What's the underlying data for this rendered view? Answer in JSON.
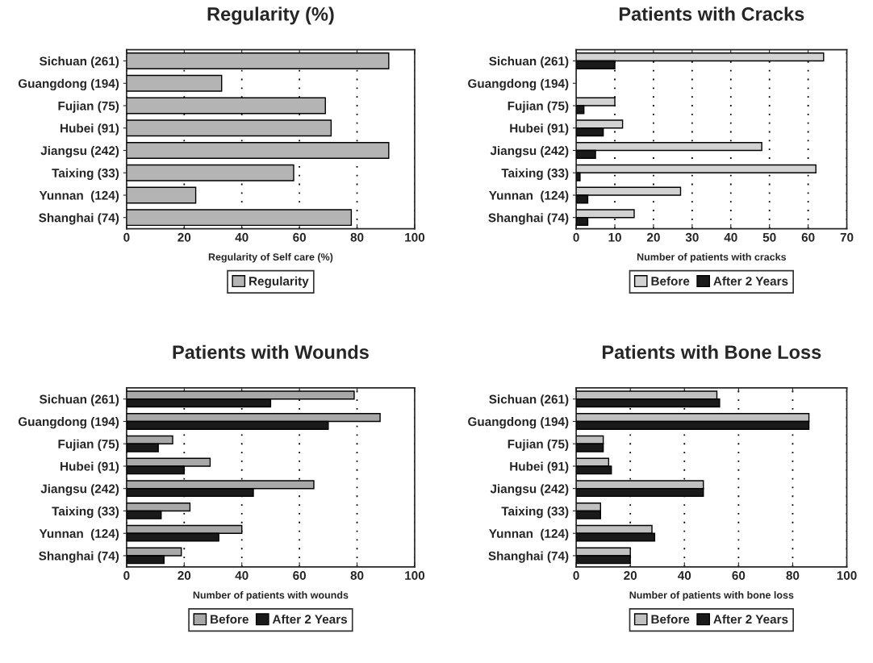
{
  "chart_data": [
    {
      "type": "bar",
      "orientation": "horizontal",
      "title": "Regularity (%)",
      "xlabel": "Regularity of Self care (%)",
      "categories": [
        "Sichuan (261)",
        "Guangdong (194)",
        "Fujian (75)",
        "Hubei (91)",
        "Jiangsu (242)",
        "Taixing (33)",
        "Yunnan  (124)",
        "Shanghai (74)"
      ],
      "series": [
        {
          "name": "Regularity",
          "color": "#b4b4b4",
          "values": [
            91,
            33,
            69,
            71,
            91,
            58,
            24,
            78
          ]
        }
      ],
      "xlim": [
        0,
        100
      ],
      "xticks": [
        0,
        20,
        40,
        60,
        80,
        100
      ],
      "grid": "x",
      "legend": "bottom"
    },
    {
      "type": "bar",
      "orientation": "horizontal",
      "title": "Patients with Cracks",
      "xlabel": "Number of patients with cracks",
      "categories": [
        "Sichuan (261)",
        "Guangdong (194)",
        "Fujian (75)",
        "Hubei (91)",
        "Jiangsu (242)",
        "Taixing (33)",
        "Yunnan  (124)",
        "Shanghai (74)"
      ],
      "series": [
        {
          "name": "Before",
          "color": "#d2d2d2",
          "values": [
            64,
            0,
            10,
            12,
            48,
            62,
            27,
            15
          ]
        },
        {
          "name": "After 2 Years",
          "color": "#1a1a1a",
          "values": [
            10,
            0,
            2,
            7,
            5,
            1,
            3,
            3
          ]
        }
      ],
      "xlim": [
        0,
        70
      ],
      "xticks": [
        0,
        10,
        20,
        30,
        40,
        50,
        60,
        70
      ],
      "grid": "x",
      "legend": "bottom"
    },
    {
      "type": "bar",
      "orientation": "horizontal",
      "title": "Patients with Wounds",
      "xlabel": "Number of patients with wounds",
      "categories": [
        "Sichuan (261)",
        "Guangdong (194)",
        "Fujian (75)",
        "Hubei (91)",
        "Jiangsu (242)",
        "Taixing (33)",
        "Yunnan  (124)",
        "Shanghai (74)"
      ],
      "series": [
        {
          "name": "Before",
          "color": "#a8a8a8",
          "values": [
            79,
            88,
            16,
            29,
            65,
            22,
            40,
            19
          ]
        },
        {
          "name": "After 2 Years",
          "color": "#1a1a1a",
          "values": [
            50,
            70,
            11,
            20,
            44,
            12,
            32,
            13
          ]
        }
      ],
      "xlim": [
        0,
        100
      ],
      "xticks": [
        0,
        20,
        40,
        60,
        80,
        100
      ],
      "grid": "x",
      "legend": "bottom"
    },
    {
      "type": "bar",
      "orientation": "horizontal",
      "title": "Patients with Bone Loss",
      "xlabel": "Number of patients with bone loss",
      "categories": [
        "Sichuan (261)",
        "Guangdong (194)",
        "Fujian (75)",
        "Hubei (91)",
        "Jiangsu (242)",
        "Taixing (33)",
        "Yunnan  (124)",
        "Shanghai (74)"
      ],
      "series": [
        {
          "name": "Before",
          "color": "#c0c0c0",
          "values": [
            52,
            86,
            10,
            12,
            47,
            9,
            28,
            20
          ]
        },
        {
          "name": "After 2 Years",
          "color": "#1a1a1a",
          "values": [
            53,
            86,
            10,
            13,
            47,
            9,
            29,
            20
          ]
        }
      ],
      "xlim": [
        0,
        100
      ],
      "xticks": [
        0,
        20,
        40,
        60,
        80,
        100
      ],
      "grid": "x",
      "legend": "bottom"
    }
  ]
}
